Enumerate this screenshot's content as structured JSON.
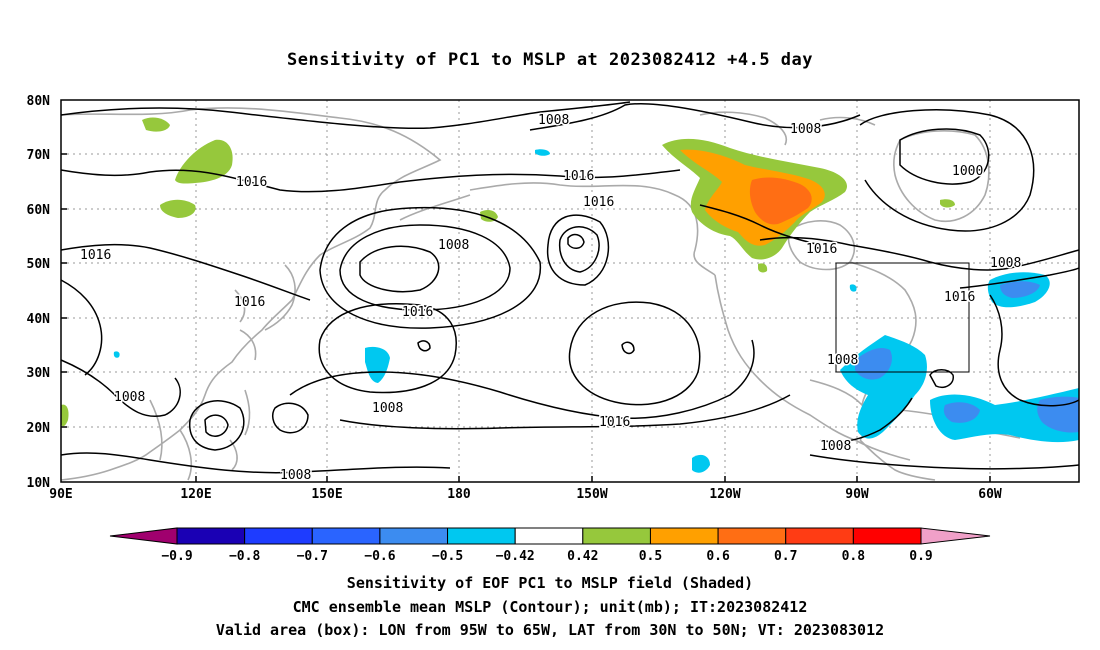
{
  "title": "Sensitivity of PC1 to MSLP at 2023082412 +4.5 day",
  "map": {
    "lat_labels": [
      "80N",
      "70N",
      "60N",
      "50N",
      "40N",
      "30N",
      "20N",
      "10N"
    ],
    "lon_labels": [
      "90E",
      "120E",
      "150E",
      "180",
      "150W",
      "120W",
      "90W",
      "60W"
    ],
    "contour_labels": [
      {
        "text": "1008"
      },
      {
        "text": "1008"
      },
      {
        "text": "1000"
      },
      {
        "text": "1016"
      },
      {
        "text": "1016"
      },
      {
        "text": "1016"
      },
      {
        "text": "1008"
      },
      {
        "text": "1016"
      },
      {
        "text": "1016"
      },
      {
        "text": "1008"
      },
      {
        "text": "1016"
      },
      {
        "text": "1016"
      },
      {
        "text": "1008"
      },
      {
        "text": "1016"
      },
      {
        "text": "1008"
      },
      {
        "text": "1008"
      },
      {
        "text": "1016"
      },
      {
        "text": "1008"
      },
      {
        "text": "1016"
      },
      {
        "text": "1008"
      },
      {
        "text": "1008"
      }
    ],
    "valid_box": {
      "lon_from": "95W",
      "lon_to": "65W",
      "lat_from": "30N",
      "lat_to": "50N"
    }
  },
  "colorbar": {
    "labels": [
      "-0.9",
      "-0.8",
      "-0.7",
      "-0.6",
      "-0.5",
      "-0.42",
      "0.42",
      "0.5",
      "0.6",
      "0.7",
      "0.8",
      "0.9"
    ],
    "colors": [
      "#a0006e",
      "#1a00b4",
      "#1e3cff",
      "#2a64ff",
      "#3c8cf0",
      "#00c8f0",
      "#ffffff",
      "#96c83c",
      "#ffa000",
      "#ff6e14",
      "#ff3c14",
      "#ff0000",
      "#f0a0c8"
    ]
  },
  "captions": {
    "line1": "Sensitivity of EOF PC1 to MSLP field (Shaded)",
    "line2": "CMC ensemble mean MSLP (Contour); unit(mb); IT:2023082412",
    "line3": "Valid area (box): LON from 95W to 65W, LAT from 30N to 50N; VT: 2023083012"
  }
}
